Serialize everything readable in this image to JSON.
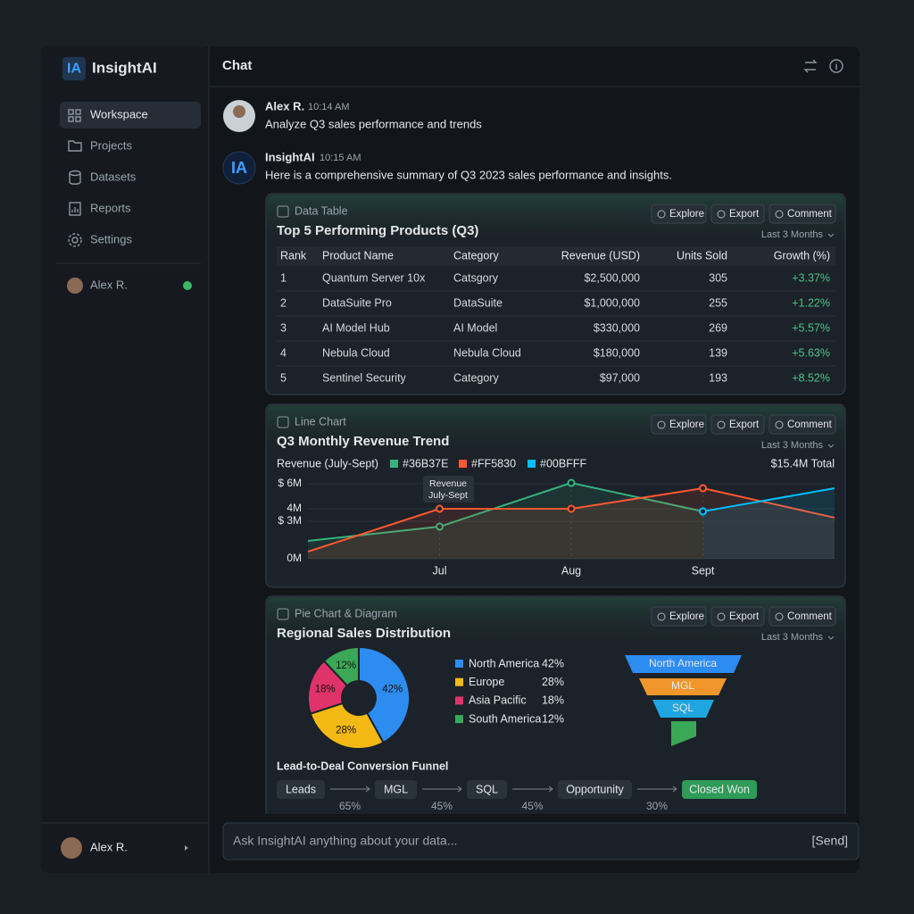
{
  "sidebar": {
    "logo": "IA",
    "app_name": "InsightAI",
    "nav": [
      "Workspace",
      "Projects",
      "Datasets",
      "Reports",
      "Settings"
    ],
    "user": "Alex R.",
    "footer_user": "Alex R."
  },
  "header": {
    "title": "Chat"
  },
  "messages": [
    {
      "author": "Alex R.",
      "time": "10:14 AM",
      "text": "Analyze Q3 sales performance and trends"
    },
    {
      "avatar": "IA",
      "author": "InsightAI",
      "time": "10:15 AM",
      "text": "Here is a comprehensive summary of Q3 2023 sales performance and insights."
    }
  ],
  "card_actions": [
    "Explore",
    "Export",
    "Comment"
  ],
  "period": "Last 3 Months",
  "table": {
    "label": "Data Table",
    "title": "Top 5 Performing Products (Q3)",
    "columns": [
      "Rank",
      "Product Name",
      "Category",
      "Revenue (USD)",
      "Units Sold",
      "Growth (%)"
    ],
    "rows": [
      [
        "1",
        "Quantum Server 10x",
        "Catsgory",
        "$2,500,000",
        "305",
        "+3.37%"
      ],
      [
        "2",
        "DataSuite Pro",
        "DataSuite",
        "$1,000,000",
        "255",
        "+1.22%"
      ],
      [
        "3",
        "AI Model Hub",
        "AI Model",
        "$330,000",
        "269",
        "+5.57%"
      ],
      [
        "4",
        "Nebula Cloud",
        "Nebula Cloud",
        "$180,000",
        "139",
        "+5.63%"
      ],
      [
        "5",
        "Sentinel Security",
        "Category",
        "$97,000",
        "193",
        "+8.52%"
      ]
    ]
  },
  "chart_data": [
    {
      "type": "line",
      "label": "Line Chart",
      "title": "Q3 Monthly Revenue Trend",
      "subtitle": "Revenue (July-Sept)",
      "total": "$15.4M Total",
      "tooltip": [
        "Revenue",
        "July-Sept"
      ],
      "categories": [
        null,
        "Jul",
        "Aug",
        "Sept",
        null
      ],
      "series": [
        {
          "name": "#36B37E",
          "color": "#36B37E",
          "values": [
            1.43,
            2.57,
            6.07,
            3.79,
            null
          ]
        },
        {
          "name": "#FF5830",
          "color": "#FF5830",
          "values": [
            0.57,
            4,
            4,
            5.64,
            3.29
          ]
        },
        {
          "name": "#00BFFF",
          "color": "#00BFFF",
          "values": [
            null,
            null,
            null,
            3.79,
            5.64
          ]
        }
      ],
      "ylim": [
        0,
        6
      ],
      "yticks": [
        {
          "value": 0,
          "label": "0M"
        },
        {
          "value": 3,
          "label": "$ 3M"
        },
        {
          "value": 4,
          "label": "4M"
        },
        {
          "value": 6,
          "label": "$ 6M"
        }
      ],
      "grid": true
    },
    {
      "type": "pie",
      "label": "Pie Chart & Diagram",
      "title": "Regional Sales Distribution",
      "categories": [
        "North America",
        "Europe",
        "Asia Pacific",
        "South America"
      ],
      "values": [
        42,
        28,
        18,
        12
      ],
      "value_labels": [
        "42%",
        "28%",
        "18%",
        "12%"
      ],
      "colors": [
        "#2d8cf0",
        "#f5b915",
        "#e0336b",
        "#3aa856"
      ]
    }
  ],
  "funnel_diagram": {
    "stages": [
      "North America",
      "MGL",
      "SQL"
    ]
  },
  "conversion_funnel": {
    "title": "Lead-to-Deal Conversion Funnel",
    "steps": [
      "Leads",
      "MGL",
      "SQL",
      "Opportunity",
      "Closed Won"
    ],
    "rates": [
      "65%",
      "45%",
      "45%",
      "30%"
    ]
  },
  "input": {
    "placeholder": "Ask InsightAI anything about your data...",
    "send": "[Send]"
  }
}
